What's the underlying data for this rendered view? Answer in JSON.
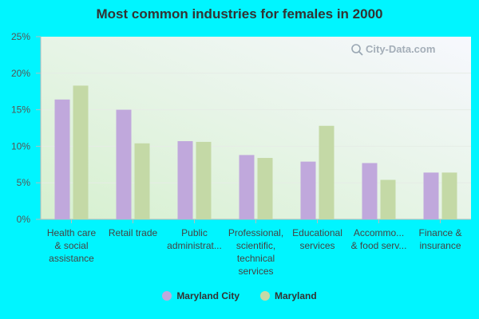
{
  "chart_data": {
    "type": "bar",
    "title": "Most common industries for females in 2000",
    "categories": [
      [
        "Health care",
        "& social",
        "assistance"
      ],
      [
        "Retail trade"
      ],
      [
        "Public",
        "administrat..."
      ],
      [
        "Professional,",
        "scientific,",
        "technical",
        "services"
      ],
      [
        "Educational",
        "services"
      ],
      [
        "Accommo...",
        "& food serv..."
      ],
      [
        "Finance &",
        "insurance"
      ]
    ],
    "series": [
      {
        "name": "Maryland City",
        "color": "#c0a8dc",
        "values": [
          16.4,
          15.0,
          10.7,
          8.8,
          7.9,
          7.7,
          6.4
        ]
      },
      {
        "name": "Maryland",
        "color": "#c4d9a6",
        "values": [
          18.3,
          10.4,
          10.6,
          8.4,
          12.8,
          5.4,
          6.4
        ]
      }
    ],
    "ylim": [
      0,
      25
    ],
    "yticks": [
      0,
      5,
      10,
      15,
      20,
      25
    ],
    "ytick_labels": [
      "0%",
      "5%",
      "10%",
      "15%",
      "20%",
      "25%"
    ],
    "xlabel": "",
    "ylabel": "",
    "grid": true,
    "legend_position": "bottom-center"
  },
  "watermark": "City-Data.com"
}
